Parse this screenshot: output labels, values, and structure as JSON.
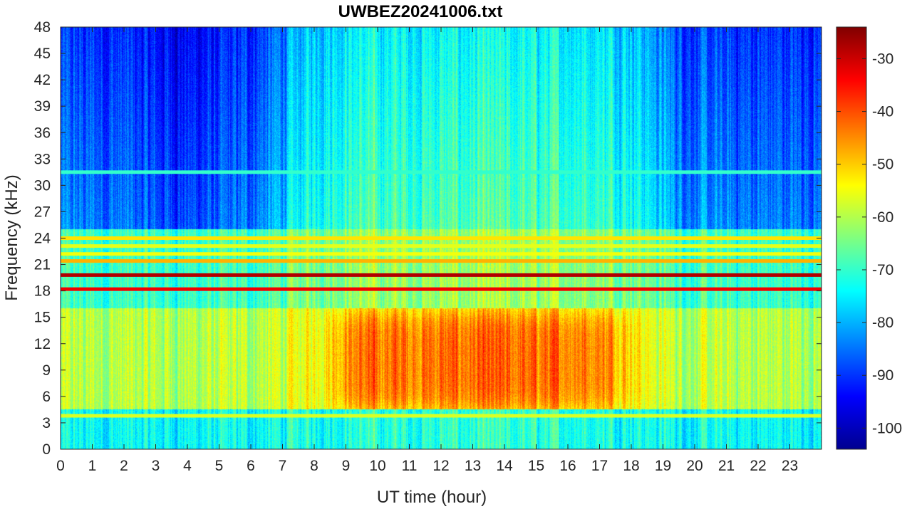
{
  "chart_data": {
    "type": "heatmap",
    "title": "UWBEZ20241006.txt",
    "xlabel": "UT time (hour)",
    "ylabel": "Frequency (kHz)",
    "xlim": [
      0,
      24
    ],
    "ylim": [
      0,
      48
    ],
    "x_ticks": [
      0,
      1,
      2,
      3,
      4,
      5,
      6,
      7,
      8,
      9,
      10,
      11,
      12,
      13,
      14,
      15,
      16,
      17,
      18,
      19,
      20,
      21,
      22,
      23
    ],
    "y_ticks": [
      0,
      3,
      6,
      9,
      12,
      15,
      18,
      21,
      24,
      27,
      30,
      33,
      36,
      39,
      42,
      45,
      48
    ],
    "colorbar": {
      "colormap": "jet",
      "range": [
        -104,
        -24
      ],
      "ticks": [
        -30,
        -40,
        -50,
        -60,
        -70,
        -80,
        -90,
        -100
      ]
    },
    "grid": false,
    "features": [
      {
        "label": "strong narrowband line",
        "freq_khz": 19.8,
        "level_db": -28
      },
      {
        "label": "strong narrowband line",
        "freq_khz": 18.2,
        "level_db": -33
      },
      {
        "label": "narrowband line",
        "freq_khz": 21.4,
        "level_db": -48
      },
      {
        "label": "narrowband line",
        "freq_khz": 24.0,
        "level_db": -52
      },
      {
        "label": "narrowband line",
        "freq_khz": 22.2,
        "level_db": -55
      },
      {
        "label": "narrowband line",
        "freq_khz": 23.1,
        "level_db": -56
      },
      {
        "label": "narrowband line",
        "freq_khz": 3.8,
        "level_db": -57
      },
      {
        "label": "narrowband line",
        "freq_khz": 31.5,
        "level_db": -70
      },
      {
        "label": "broadband emission 4-16 kHz",
        "time_range_h": [
          8.5,
          18
        ],
        "level_db": -48
      }
    ]
  }
}
